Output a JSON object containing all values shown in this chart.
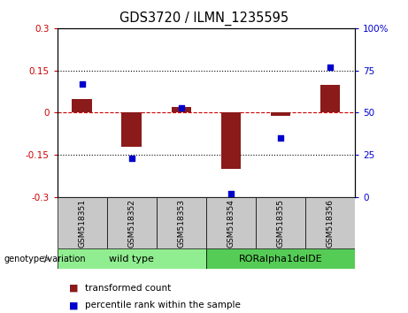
{
  "title": "GDS3720 / ILMN_1235595",
  "samples": [
    "GSM518351",
    "GSM518352",
    "GSM518353",
    "GSM518354",
    "GSM518355",
    "GSM518356"
  ],
  "transformed_count": [
    0.05,
    -0.12,
    0.02,
    -0.2,
    -0.01,
    0.1
  ],
  "percentile_rank": [
    67,
    23,
    53,
    2,
    35,
    77
  ],
  "groups": [
    {
      "label": "wild type",
      "indices": [
        0,
        1,
        2
      ],
      "color": "#90EE90"
    },
    {
      "label": "RORalpha1delDE",
      "indices": [
        3,
        4,
        5
      ],
      "color": "#55CC55"
    }
  ],
  "ylim_left": [
    -0.3,
    0.3
  ],
  "ylim_right": [
    0,
    100
  ],
  "yticks_left": [
    -0.3,
    -0.15,
    0.0,
    0.15,
    0.3
  ],
  "yticks_right": [
    0,
    25,
    50,
    75,
    100
  ],
  "bar_color": "#8B1A1A",
  "dot_color": "#0000CC",
  "hline_color": "#CC0000",
  "legend_items": [
    "transformed count",
    "percentile rank within the sample"
  ],
  "genotype_label": "genotype/variation",
  "tick_label_color_left": "#CC0000",
  "tick_label_color_right": "#0000CC",
  "sample_box_color": "#C8C8C8",
  "bar_width": 0.4
}
